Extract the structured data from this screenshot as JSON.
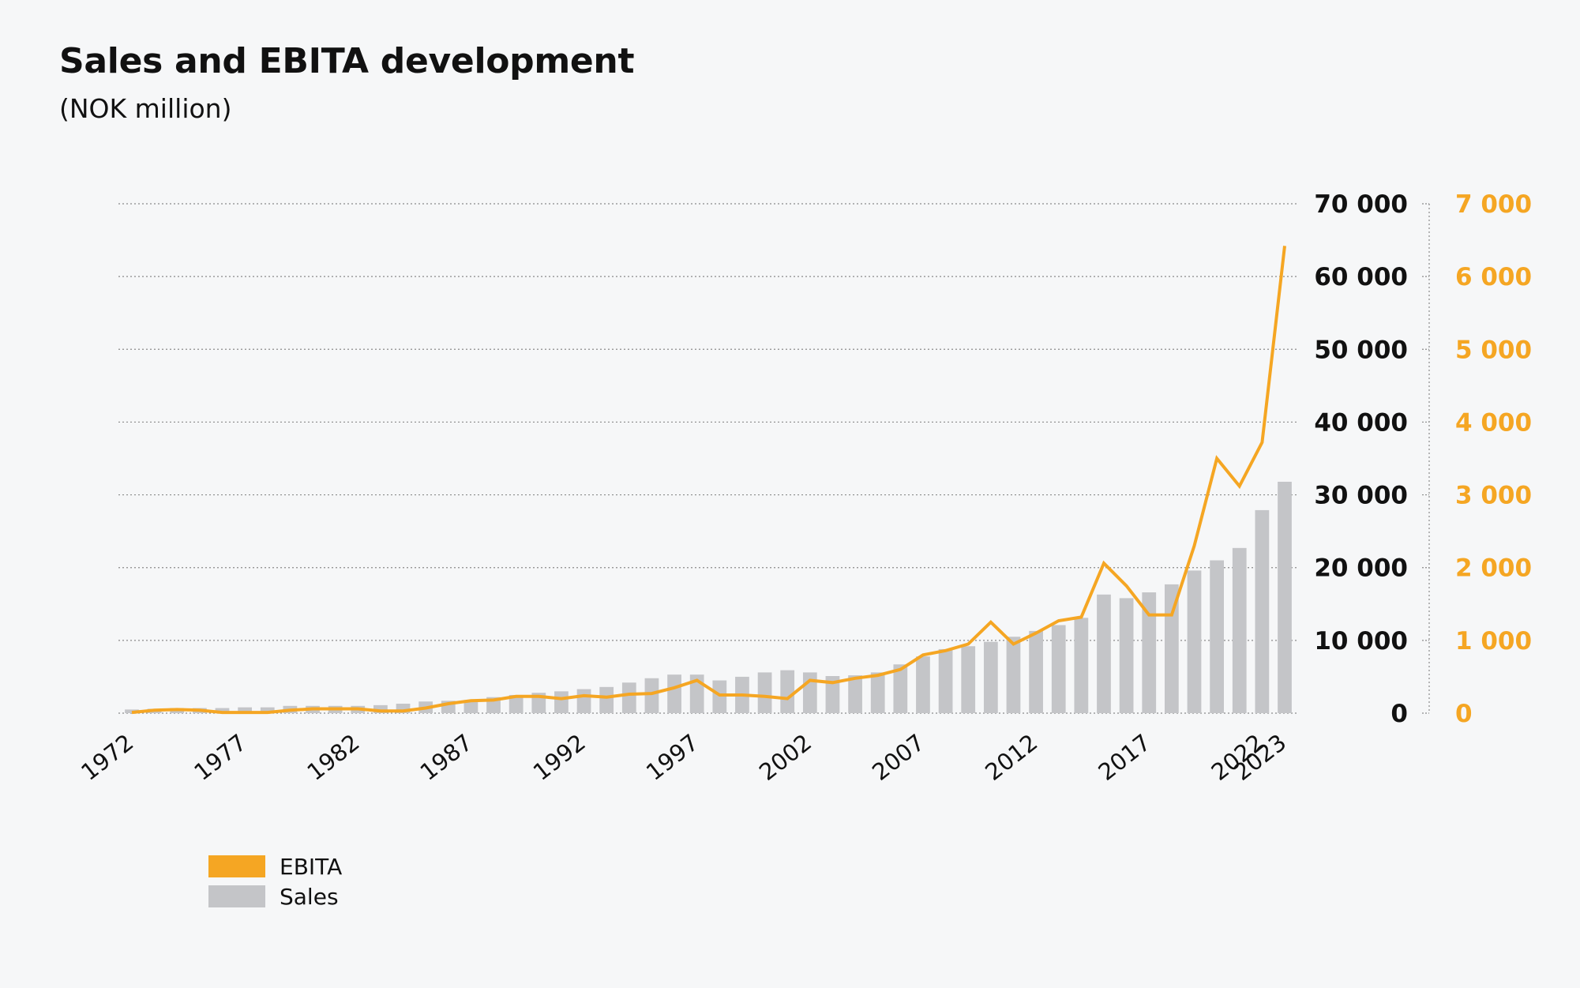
{
  "title": "Sales and EBITA development",
  "subtitle": "(NOK million)",
  "colors": {
    "ebita": "#f5a623",
    "sales": "#c4c5c8",
    "grid": "#8a8a8a",
    "text": "#111111"
  },
  "chart_data": {
    "type": "bar",
    "title": "Sales and EBITA development",
    "subtitle": "(NOK million)",
    "x": [
      1972,
      1973,
      1974,
      1975,
      1976,
      1977,
      1978,
      1979,
      1980,
      1981,
      1982,
      1983,
      1984,
      1985,
      1986,
      1987,
      1988,
      1989,
      1990,
      1991,
      1992,
      1993,
      1994,
      1995,
      1996,
      1997,
      1998,
      1999,
      2000,
      2001,
      2002,
      2003,
      2004,
      2005,
      2006,
      2007,
      2008,
      2009,
      2010,
      2011,
      2012,
      2013,
      2014,
      2015,
      2016,
      2017,
      2018,
      2019,
      2020,
      2021,
      2022,
      2023
    ],
    "x_tick_labels": [
      "1972",
      "1977",
      "1982",
      "1987",
      "1992",
      "1997",
      "2002",
      "2007",
      "2012",
      "2017",
      "2022",
      "2023"
    ],
    "left_axis": {
      "ticks": [
        0,
        10000,
        20000,
        30000,
        40000,
        50000,
        60000,
        70000
      ],
      "tick_labels": [
        "0",
        "10 000",
        "20 000",
        "30 000",
        "40 000",
        "50 000",
        "60 000",
        "70 000"
      ],
      "ylim": [
        0,
        70000
      ]
    },
    "right_axis": {
      "ticks": [
        0,
        1000,
        2000,
        3000,
        4000,
        5000,
        6000,
        7000
      ],
      "tick_labels": [
        "0",
        "1 000",
        "2 000",
        "3 000",
        "4 000",
        "5 000",
        "6 000",
        "7 000"
      ],
      "ylim": [
        0,
        7000
      ]
    },
    "grid": true,
    "legend_position": "bottom-left",
    "series": [
      {
        "name": "EBITA",
        "type": "line",
        "axis": "right",
        "values": [
          10,
          40,
          50,
          40,
          10,
          10,
          10,
          40,
          60,
          60,
          60,
          30,
          30,
          70,
          130,
          170,
          180,
          230,
          230,
          200,
          240,
          220,
          260,
          270,
          350,
          450,
          250,
          250,
          230,
          200,
          450,
          420,
          480,
          520,
          600,
          800,
          860,
          950,
          1250,
          950,
          1100,
          1270,
          1320,
          2060,
          1750,
          1350,
          1350,
          2300,
          3500,
          3120,
          3720,
          6420
        ]
      },
      {
        "name": "Sales",
        "type": "bar",
        "axis": "left",
        "values": [
          500,
          600,
          700,
          700,
          700,
          800,
          800,
          1000,
          1000,
          1000,
          1000,
          1100,
          1300,
          1600,
          1700,
          1800,
          2200,
          2500,
          2800,
          3000,
          3300,
          3600,
          4200,
          4800,
          5300,
          5300,
          4500,
          5000,
          5600,
          5900,
          5600,
          5100,
          5200,
          5600,
          6700,
          7800,
          8800,
          9200,
          9800,
          10500,
          11300,
          12100,
          13100,
          16300,
          15800,
          16600,
          17700,
          19600,
          21000,
          22700,
          27900,
          31800
        ]
      }
    ]
  },
  "legend": [
    {
      "label": "EBITA",
      "color": "#f5a623"
    },
    {
      "label": "Sales",
      "color": "#c4c5c8"
    }
  ]
}
